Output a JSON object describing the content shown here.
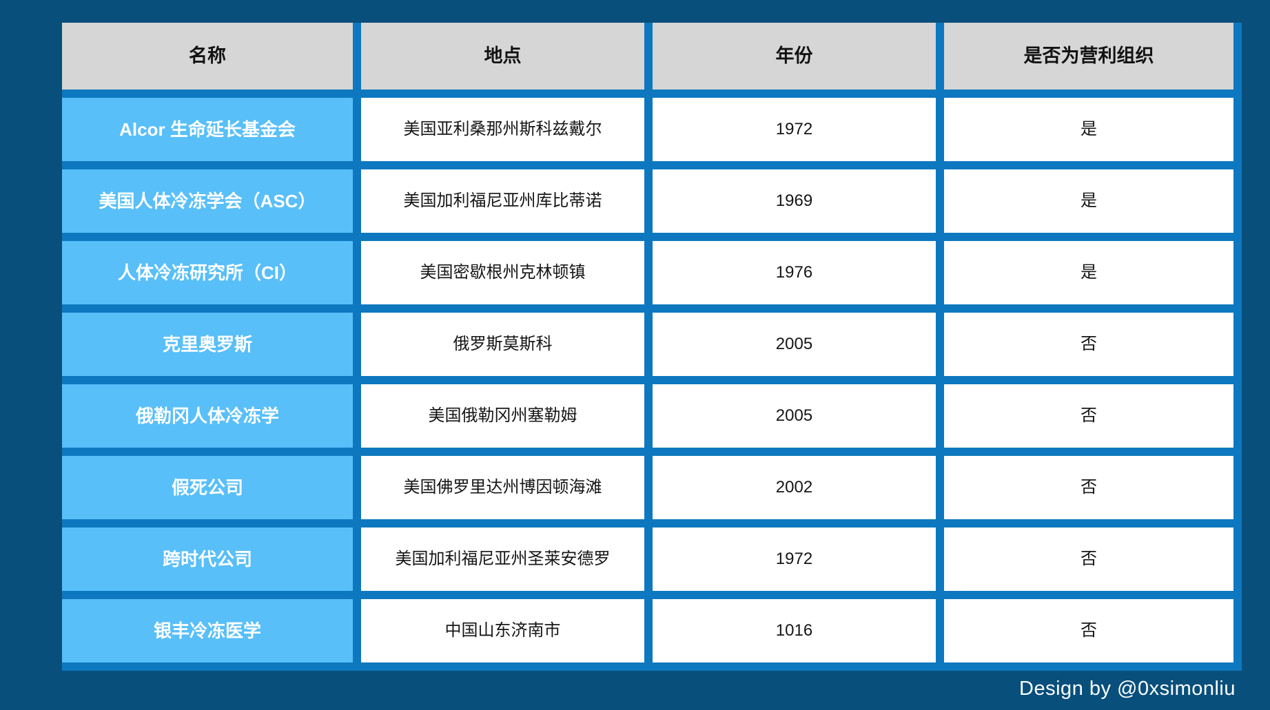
{
  "chart_data": {
    "type": "table",
    "title": "",
    "columns": [
      "名称",
      "地点",
      "年份",
      "是否为营利组织"
    ],
    "rows": [
      [
        "Alcor 生命延长基金会",
        "美国亚利桑那州斯科兹戴尔",
        "1972",
        "是"
      ],
      [
        "美国人体冷冻学会（ASC）",
        "美国加利福尼亚州库比蒂诺",
        "1969",
        "是"
      ],
      [
        "人体冷冻研究所（CI）",
        "美国密歇根州克林顿镇",
        "1976",
        "是"
      ],
      [
        "克里奥罗斯",
        "俄罗斯莫斯科",
        "2005",
        "否"
      ],
      [
        "俄勒冈人体冷冻学",
        "美国俄勒冈州塞勒姆",
        "2005",
        "否"
      ],
      [
        "假死公司",
        "美国佛罗里达州博因顿海滩",
        "2002",
        "否"
      ],
      [
        "跨时代公司",
        "美国加利福尼亚州圣莱安德罗",
        "1972",
        "否"
      ],
      [
        "银丰冷冻医学",
        "中国山东济南市",
        "1016",
        "否"
      ]
    ],
    "layout": {
      "legend": "none",
      "grid": "cell-borders",
      "header_position": "top"
    }
  },
  "footer": {
    "credit": "Design by @0xsimonliu"
  },
  "colors": {
    "page_background": "#094f7c",
    "table_border": "#0d78bf",
    "header_cell_background": "#d6d6d6",
    "name_cell_background": "#58bff9",
    "body_cell_background": "#ffffff",
    "header_text": "#121212",
    "name_text": "#ffffff",
    "body_text": "#161616",
    "footer_text": "#ffffff"
  }
}
